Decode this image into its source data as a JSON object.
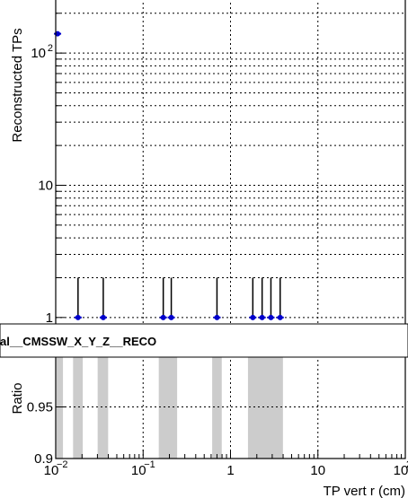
{
  "chart_data": [
    {
      "panel": "top",
      "type": "scatter",
      "ylabel": "Reconstructed TPs",
      "xscale": "log",
      "yscale": "log",
      "xlim": [
        0.01,
        100
      ],
      "ylim": [
        0.88,
        260
      ],
      "grid": true,
      "y_ticks": [
        {
          "value": 1,
          "label": "1",
          "exp": ""
        },
        {
          "value": 10,
          "label": "10",
          "exp": ""
        },
        {
          "value": 100,
          "label": "10",
          "exp": "2"
        }
      ],
      "series": [
        {
          "color": "#0000cc",
          "points": [
            {
              "x": 0.0105,
              "y": 140,
              "err_up": 0
            },
            {
              "x": 0.018,
              "y": 1,
              "err_up": 1
            },
            {
              "x": 0.035,
              "y": 1,
              "err_up": 1
            },
            {
              "x": 0.17,
              "y": 1,
              "err_up": 1
            },
            {
              "x": 0.21,
              "y": 1,
              "err_up": 1
            },
            {
              "x": 0.7,
              "y": 1,
              "err_up": 1
            },
            {
              "x": 1.8,
              "y": 1,
              "err_up": 1
            },
            {
              "x": 2.3,
              "y": 1,
              "err_up": 1
            },
            {
              "x": 2.9,
              "y": 1,
              "err_up": 1
            },
            {
              "x": 3.7,
              "y": 1,
              "err_up": 1
            }
          ]
        }
      ]
    },
    {
      "panel": "bottom",
      "type": "bar",
      "xlabel": "TP vert r (cm)",
      "ylabel": "Ratio",
      "xscale": "log",
      "xlim": [
        0.01,
        100
      ],
      "ylim": [
        0.9,
        1.0
      ],
      "grid": true,
      "x_ticks": [
        {
          "value": 0.01,
          "label": "10",
          "exp": "−2"
        },
        {
          "value": 0.1,
          "label": "10",
          "exp": "−1"
        },
        {
          "value": 1,
          "label": "1",
          "exp": ""
        },
        {
          "value": 10,
          "label": "10",
          "exp": ""
        },
        {
          "value": 100,
          "label": "10",
          "exp": "2"
        }
      ],
      "y_ticks": [
        {
          "value": 0.9,
          "label": "0.9"
        },
        {
          "value": 0.95,
          "label": "0.95"
        }
      ],
      "shaded_bins": [
        [
          0.0102,
          0.0121
        ],
        [
          0.0158,
          0.0204
        ],
        [
          0.0302,
          0.0398
        ],
        [
          0.151,
          0.245
        ],
        [
          0.617,
          0.794
        ],
        [
          1.585,
          3.98
        ]
      ],
      "shade_color": "#cccccc"
    }
  ],
  "legend": {
    "entry": "al__CMSSW_X_Y_Z__RECO",
    "placement": "middle"
  }
}
